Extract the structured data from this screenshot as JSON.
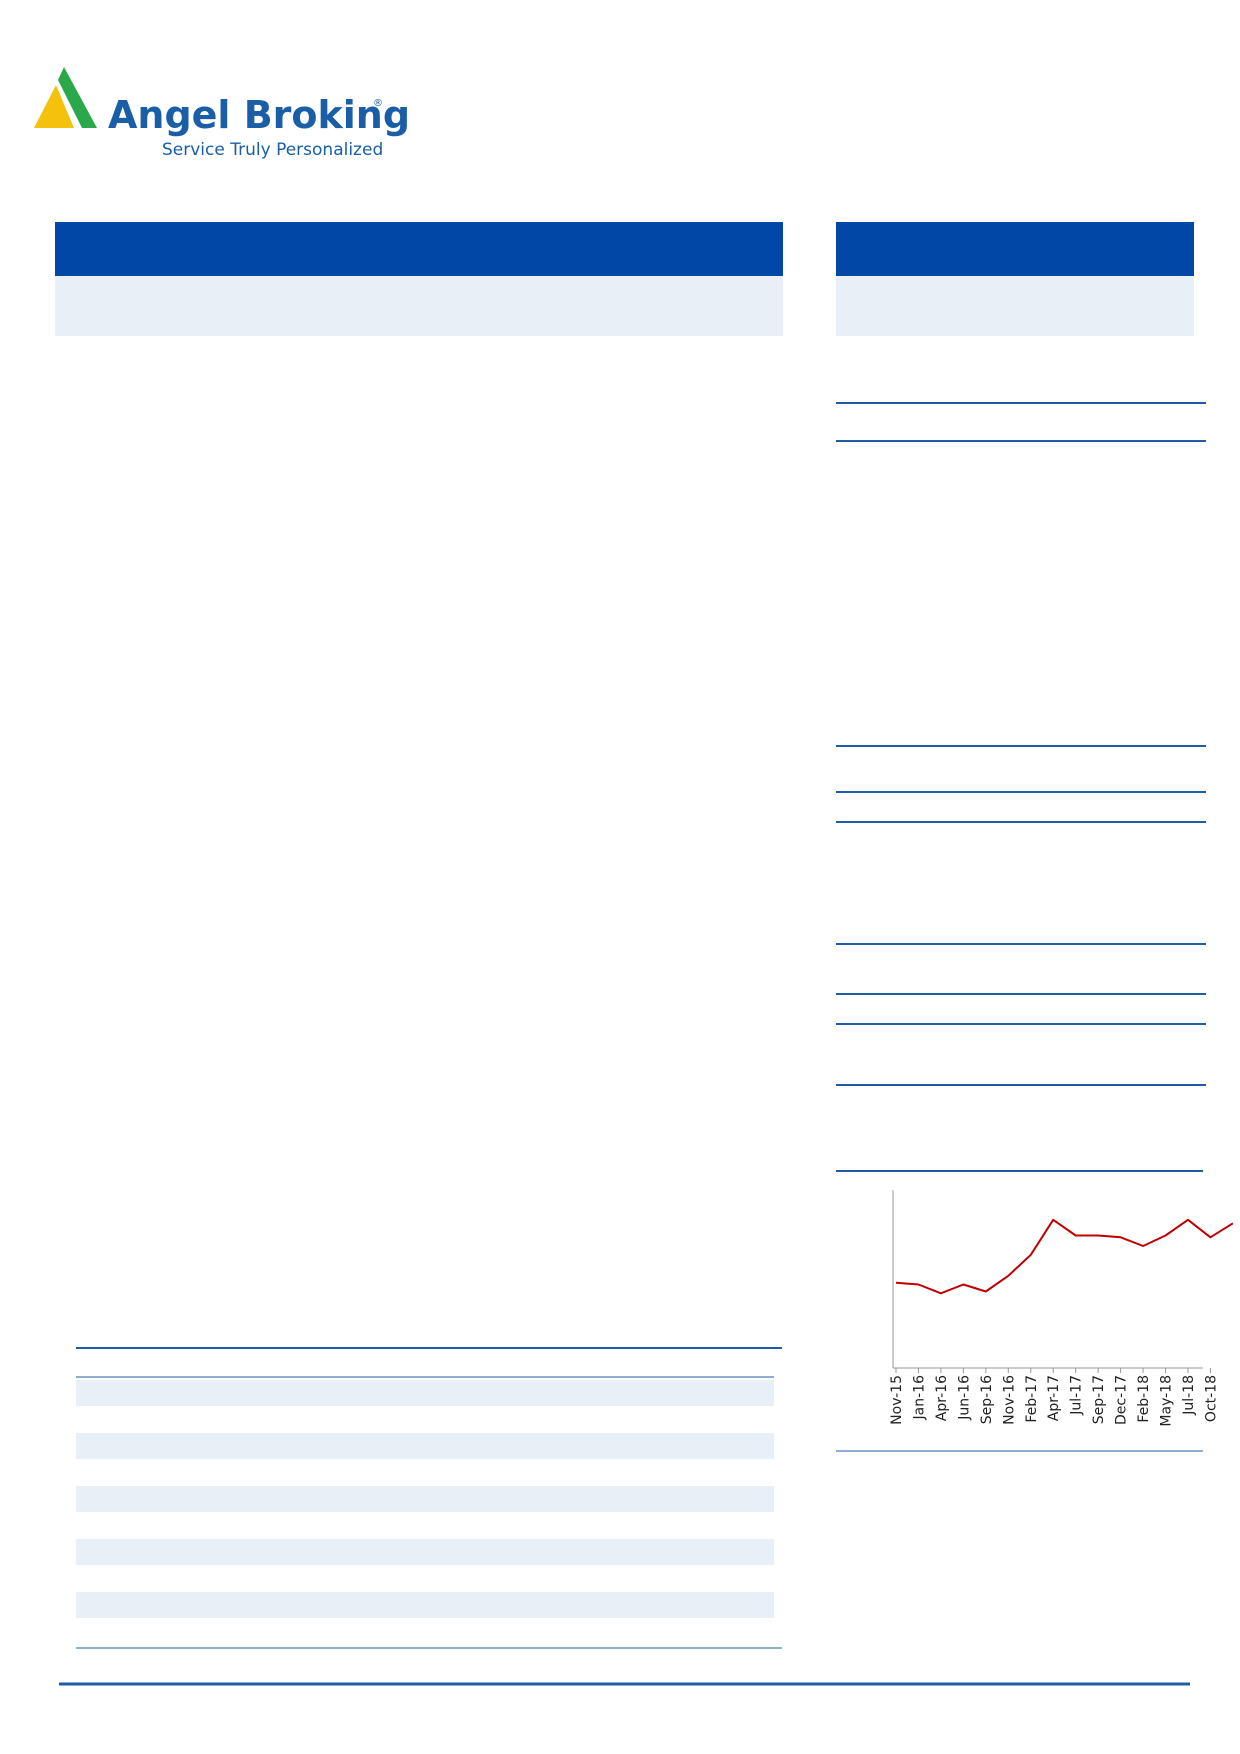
{
  "logo": {
    "name": "Angel Broking",
    "registered": "®",
    "tagline": "Service Truly Personalized"
  },
  "chart_data": {
    "type": "line",
    "categories": [
      "Nov-15",
      "Jan-16",
      "Apr-16",
      "Jun-16",
      "Sep-16",
      "Nov-16",
      "Feb-17",
      "Apr-17",
      "Jul-17",
      "Sep-17",
      "Dec-17",
      "Feb-18",
      "May-18",
      "Jul-18",
      "Oct-18",
      null
    ],
    "series": [
      {
        "color": "#c00000",
        "values": [
          47,
          46,
          41,
          46,
          42,
          51,
          63,
          83,
          74,
          74,
          73,
          68,
          74,
          83,
          73,
          81
        ]
      }
    ],
    "ylim": [
      0,
      100
    ]
  }
}
